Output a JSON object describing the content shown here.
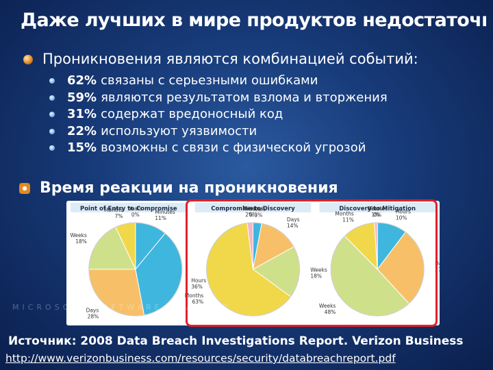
{
  "slide": {
    "title": "Даже лучших в мире продуктов недостаточно…",
    "bullet": "Проникновения являются комбинацией событий:",
    "stats": [
      {
        "pct": "62%",
        "text": "связаны с серьезными ошибками"
      },
      {
        "pct": "59%",
        "text": "являются результатом взлома и вторжения"
      },
      {
        "pct": "31%",
        "text": "содержат вредоносный код"
      },
      {
        "pct": "22%",
        "text": "используют уязвимости"
      },
      {
        "pct": "15%",
        "text": "возможны с связи с физической угрозой"
      }
    ],
    "section_heading": "Время реакции на проникновения",
    "watermark": "MICROSOFT SOFTWARE ROADMAP",
    "source": "Источник: 2008 Data Breach Investigations Report. Verizon Business",
    "url": "http://www.verizonbusiness.com/resources/security/databreachreport.pdf"
  },
  "colors": {
    "Minutes": "#3fb6de",
    "Hours": "#3fb6de",
    "Days": "#f7c068",
    "Weeks": "#cfe08a",
    "Months": "#f0d84a",
    "Years": "#f5b5c8",
    "highlight": "#e0202a"
  },
  "chart_data": [
    {
      "type": "pie",
      "title": "Point of Entry to Compromise",
      "categories": [
        "Minutes",
        "Hours",
        "Days",
        "Weeks",
        "Months",
        "Years"
      ],
      "values": [
        11,
        36,
        28,
        18,
        7,
        0
      ]
    },
    {
      "type": "pie",
      "title": "Compromise to Discovery",
      "categories": [
        "Minutes",
        "Hours",
        "Days",
        "Weeks",
        "Months",
        "Years"
      ],
      "values": [
        0,
        3,
        14,
        18,
        63,
        2
      ]
    },
    {
      "type": "pie",
      "title": "Discovery to Mitigation",
      "categories": [
        "Minutes",
        "Hours",
        "Days",
        "Weeks",
        "Months",
        "Years"
      ],
      "values": [
        0,
        10,
        27,
        48,
        11,
        1
      ]
    }
  ]
}
